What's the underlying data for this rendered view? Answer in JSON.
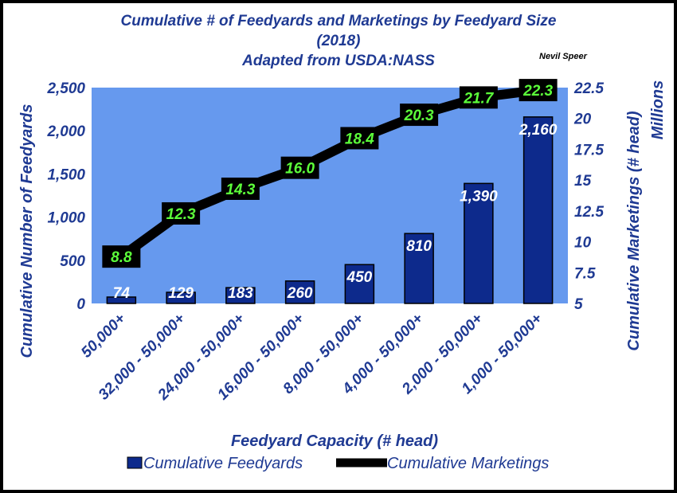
{
  "chart_data": {
    "type": "bar+line",
    "title": "Cumulative # of Feedyards and Marketings by Feedyard Size",
    "subtitle": "(2018)",
    "source": "Adapted from USDA:NASS",
    "credit": "Nevil Speer",
    "categories": [
      "50,000+",
      "32,000 - 50,000+",
      "24,000 - 50,000+",
      "16,000 - 50,000+",
      "8,000 - 50,000+",
      "4,000 - 50,000+",
      "2,000 - 50,000+",
      "1,000 - 50,000+"
    ],
    "xlabel": "Feedyard Capacity (# head)",
    "ylabel": "Cumulative Number of Feedyards",
    "y2label": "Cumulative Marketings (# head)",
    "y2unit": "Millions",
    "ylim": [
      0,
      2500
    ],
    "y2lim": [
      5,
      22.5
    ],
    "yticks": [
      "0",
      "500",
      "1,000",
      "1,500",
      "2,000",
      "2,500"
    ],
    "y2ticks": [
      "5",
      "7.5",
      "10",
      "12.5",
      "15",
      "17.5",
      "20",
      "22.5"
    ],
    "series": [
      {
        "name": "Cumulative Feedyards",
        "type": "bar",
        "axis": "left",
        "values": [
          74,
          129,
          183,
          260,
          450,
          810,
          1390,
          2160
        ],
        "labels": [
          "74",
          "129",
          "183",
          "260",
          "450",
          "810",
          "1,390",
          "2,160"
        ],
        "color": "#0d2a8c"
      },
      {
        "name": "Cumulative Marketings",
        "type": "line",
        "axis": "right",
        "values": [
          8.8,
          12.3,
          14.3,
          16.0,
          18.4,
          20.3,
          21.7,
          22.3
        ],
        "labels": [
          "8.8",
          "12.3",
          "14.3",
          "16.0",
          "18.4",
          "20.3",
          "21.7",
          "22.3"
        ],
        "color": "#000000"
      }
    ],
    "plot_background": "#6699ee",
    "legend": "bottom"
  }
}
